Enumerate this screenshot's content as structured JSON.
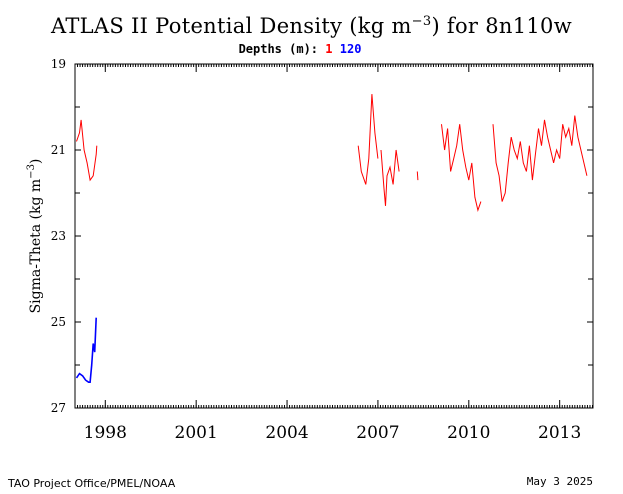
{
  "title": {
    "main": "ATLAS II Potential Density (kg m",
    "exp": "−3",
    "tail": ") for 8n110w"
  },
  "legend": {
    "label": "Depths (m):",
    "entries": [
      {
        "name": "1",
        "color": "#ff0000"
      },
      {
        "name": "120",
        "color": "#0000ff"
      }
    ]
  },
  "footer": {
    "left": "TAO Project Office/PMEL/NOAA",
    "right": "May  3 2025"
  },
  "chart_data": {
    "type": "line",
    "ylabel": "Sigma-Theta (kg m",
    "ylabel_exp": "−3",
    "ylabel_tail": ")",
    "ylim": [
      27,
      19
    ],
    "y_inverted": true,
    "yticks": [
      19,
      21,
      23,
      25,
      27
    ],
    "xlim": [
      1997.0,
      2014.1
    ],
    "xticks": [
      {
        "value": 1998,
        "label": "1998"
      },
      {
        "value": 2001,
        "label": "2001"
      },
      {
        "value": 2004,
        "label": "2004"
      },
      {
        "value": 2007,
        "label": "2007"
      },
      {
        "value": 2010,
        "label": "2010"
      },
      {
        "value": 2013,
        "label": "2013"
      }
    ],
    "grid": false,
    "series": [
      {
        "name": "1",
        "color": "#ff0000",
        "segments": [
          [
            [
              1997.05,
              20.8
            ],
            [
              1997.15,
              20.6
            ],
            [
              1997.2,
              20.3
            ],
            [
              1997.3,
              21.0
            ],
            [
              1997.4,
              21.3
            ],
            [
              1997.5,
              21.7
            ],
            [
              1997.6,
              21.6
            ],
            [
              1997.7,
              21.1
            ],
            [
              1997.72,
              20.9
            ]
          ],
          [
            [
              2006.35,
              20.9
            ],
            [
              2006.45,
              21.5
            ],
            [
              2006.6,
              21.8
            ],
            [
              2006.7,
              21.2
            ],
            [
              2006.8,
              19.7
            ],
            [
              2006.9,
              20.6
            ],
            [
              2007.0,
              21.2
            ]
          ],
          [
            [
              2007.1,
              21.0
            ],
            [
              2007.2,
              21.9
            ],
            [
              2007.25,
              22.3
            ],
            [
              2007.3,
              21.6
            ],
            [
              2007.4,
              21.4
            ],
            [
              2007.5,
              21.8
            ],
            [
              2007.6,
              21.0
            ],
            [
              2007.7,
              21.5
            ]
          ],
          [
            [
              2008.3,
              21.5
            ],
            [
              2008.32,
              21.7
            ]
          ],
          [
            [
              2009.1,
              20.4
            ],
            [
              2009.2,
              21.0
            ],
            [
              2009.3,
              20.5
            ],
            [
              2009.4,
              21.5
            ],
            [
              2009.5,
              21.2
            ],
            [
              2009.6,
              20.9
            ],
            [
              2009.7,
              20.4
            ],
            [
              2009.8,
              21.0
            ],
            [
              2009.9,
              21.4
            ],
            [
              2010.0,
              21.7
            ],
            [
              2010.1,
              21.3
            ],
            [
              2010.2,
              22.1
            ],
            [
              2010.3,
              22.4
            ],
            [
              2010.4,
              22.2
            ]
          ],
          [
            [
              2010.8,
              20.4
            ],
            [
              2010.9,
              21.3
            ],
            [
              2011.0,
              21.6
            ],
            [
              2011.1,
              22.2
            ],
            [
              2011.2,
              22.0
            ],
            [
              2011.3,
              21.3
            ],
            [
              2011.4,
              20.7
            ],
            [
              2011.5,
              21.0
            ],
            [
              2011.6,
              21.2
            ],
            [
              2011.7,
              20.8
            ],
            [
              2011.8,
              21.3
            ],
            [
              2011.9,
              21.5
            ],
            [
              2012.0,
              20.9
            ],
            [
              2012.1,
              21.7
            ],
            [
              2012.2,
              21.1
            ],
            [
              2012.3,
              20.5
            ],
            [
              2012.4,
              20.9
            ],
            [
              2012.5,
              20.3
            ],
            [
              2012.6,
              20.7
            ],
            [
              2012.7,
              21.0
            ],
            [
              2012.8,
              21.3
            ],
            [
              2012.9,
              21.0
            ],
            [
              2013.0,
              21.2
            ],
            [
              2013.1,
              20.4
            ],
            [
              2013.2,
              20.7
            ],
            [
              2013.3,
              20.5
            ],
            [
              2013.4,
              20.9
            ],
            [
              2013.5,
              20.2
            ],
            [
              2013.6,
              20.7
            ],
            [
              2013.7,
              21.0
            ],
            [
              2013.8,
              21.3
            ],
            [
              2013.9,
              21.6
            ]
          ]
        ]
      },
      {
        "name": "120",
        "color": "#0000ff",
        "segments": [
          [
            [
              1997.05,
              26.3
            ],
            [
              1997.15,
              26.2
            ],
            [
              1997.25,
              26.25
            ],
            [
              1997.35,
              26.35
            ],
            [
              1997.45,
              26.4
            ],
            [
              1997.5,
              26.4
            ],
            [
              1997.55,
              26.0
            ],
            [
              1997.6,
              25.5
            ],
            [
              1997.65,
              25.7
            ],
            [
              1997.7,
              24.9
            ]
          ]
        ]
      }
    ]
  }
}
